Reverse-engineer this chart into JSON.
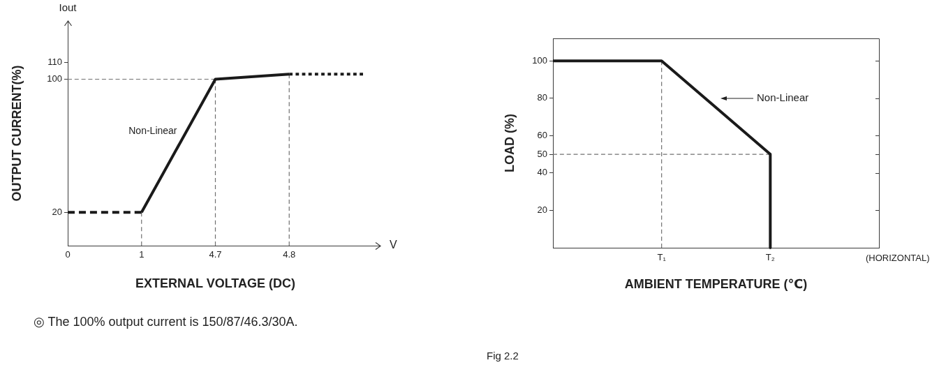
{
  "chart_data": [
    {
      "type": "line",
      "xlabel": "EXTERNAL VOLTAGE (DC)",
      "ylabel": "OUTPUT CURRENT(%)",
      "categories": [
        "0",
        "1",
        "4.7",
        "4.8",
        null
      ],
      "ylim": [
        0,
        135
      ],
      "yticks": [
        20,
        100,
        110
      ],
      "series": [
        {
          "color": "#1a1a1a",
          "line_style": "dashed",
          "values": [
            20,
            20,
            null,
            null,
            null
          ]
        },
        {
          "color": "#1a1a1a",
          "line_style": "solid",
          "values": [
            null,
            20,
            100,
            103,
            null
          ]
        },
        {
          "color": "#1a1a1a",
          "line_style": "dotted",
          "values": [
            null,
            null,
            null,
            103,
            103
          ]
        },
        {
          "color": "#707070",
          "line_style": "dashed",
          "x": [
            "1",
            "1"
          ],
          "values": [
            0,
            20
          ]
        },
        {
          "color": "#707070",
          "line_style": "dashed",
          "x": [
            "4.7",
            "4.7"
          ],
          "values": [
            0,
            100
          ]
        },
        {
          "color": "#707070",
          "line_style": "dashed",
          "x": [
            "4.8",
            "4.8"
          ],
          "values": [
            0,
            103
          ]
        },
        {
          "color": "#707070",
          "line_style": "dashed",
          "values": [
            100,
            100,
            100,
            null,
            null
          ]
        }
      ],
      "annotations": [
        "Iout",
        "V",
        "Non-Linear",
        "◎ The 100% output current is 150/87/46.3/30A."
      ]
    },
    {
      "type": "line",
      "xlabel": "AMBIENT TEMPERATURE (℃)",
      "ylabel": "LOAD (%)",
      "categories": [
        null,
        "T₁",
        "T₂",
        null
      ],
      "ylim": [
        0,
        112
      ],
      "yticks": [
        20,
        40,
        50,
        60,
        80,
        100
      ],
      "series": [
        {
          "color": "#1a1a1a",
          "line_style": "solid",
          "values": [
            100,
            100,
            50,
            null
          ]
        },
        {
          "color": "#1a1a1a",
          "line_style": "solid",
          "x": [
            "T₂",
            "T₂"
          ],
          "values": [
            50,
            0
          ]
        },
        {
          "color": "#707070",
          "line_style": "dashed",
          "x": [
            "T₁",
            "T₁"
          ],
          "values": [
            100,
            0
          ]
        },
        {
          "color": "#707070",
          "line_style": "dashed",
          "values": [
            50,
            50,
            50,
            null
          ]
        }
      ],
      "annotations": [
        "Non-Linear",
        "(HORIZONTAL)",
        "Fig 2.2"
      ]
    }
  ]
}
